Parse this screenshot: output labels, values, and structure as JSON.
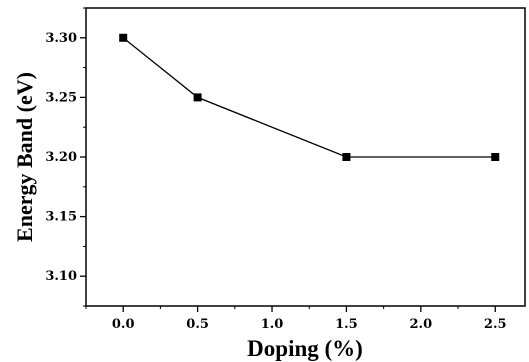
{
  "chart_data": {
    "type": "line",
    "xlabel": "Doping (%)",
    "ylabel": "Energy Band (eV)",
    "x": [
      0.0,
      0.5,
      1.5,
      2.5
    ],
    "series": [
      {
        "values": [
          3.3,
          3.25,
          3.2,
          3.2
        ],
        "marker": "square",
        "color": "#000000"
      }
    ],
    "xlim": [
      -0.25,
      2.7
    ],
    "ylim": [
      3.075,
      3.325
    ],
    "xticks": [
      "0.0",
      "0.5",
      "1.0",
      "1.5",
      "2.0",
      "2.5"
    ],
    "yticks": [
      "3.10",
      "3.15",
      "3.20",
      "3.25",
      "3.30"
    ],
    "grid": false,
    "legend": "none"
  }
}
